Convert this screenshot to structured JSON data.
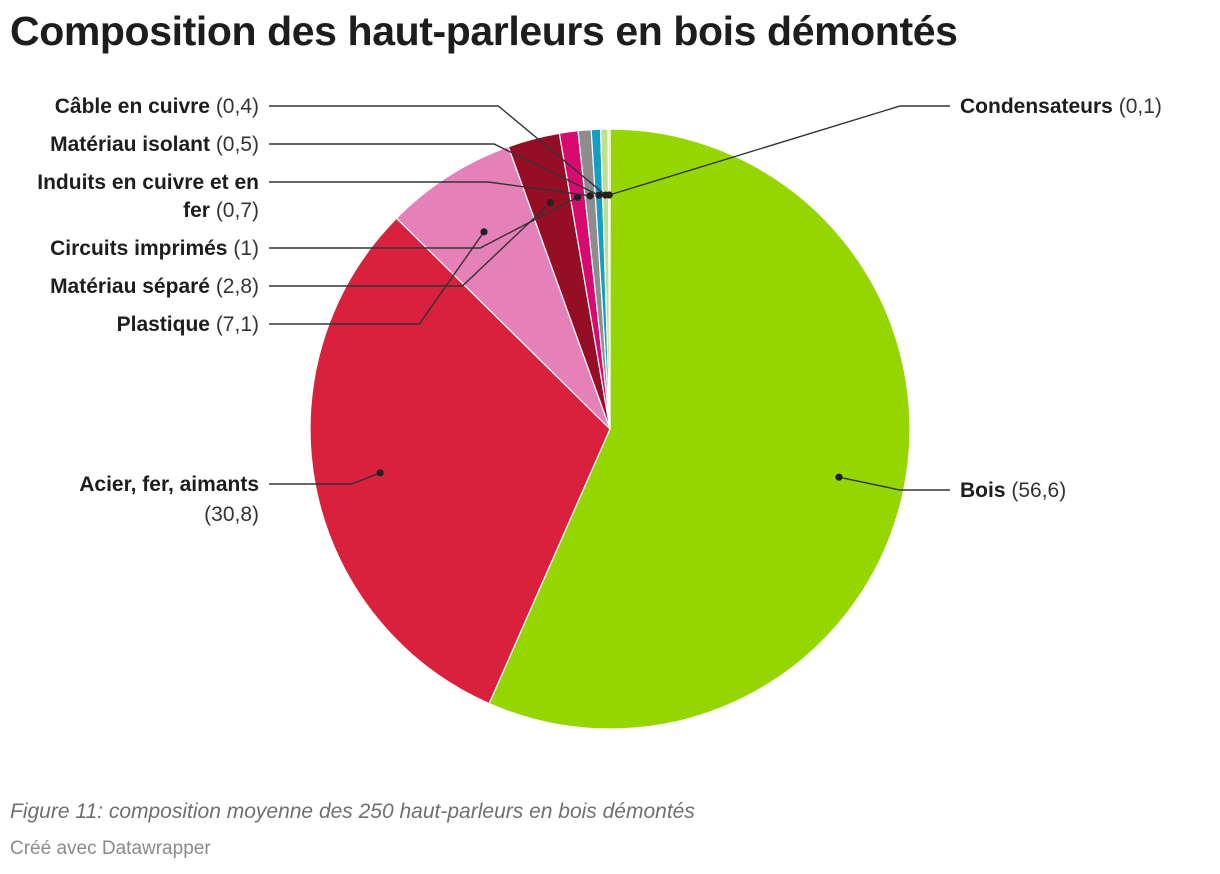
{
  "chart_data": {
    "type": "pie",
    "title": "Composition des haut-parleurs en bois démontés",
    "slices": [
      {
        "label": "Bois",
        "value": 56.6,
        "display": "56,6",
        "color": "#95d600"
      },
      {
        "label": "Acier, fer, aimants",
        "value": 30.8,
        "display": "30,8",
        "color": "#d9203c"
      },
      {
        "label": "Plastique",
        "value": 7.1,
        "display": "7,1",
        "color": "#e680b8"
      },
      {
        "label": "Matériau séparé",
        "value": 2.8,
        "display": "2,8",
        "color": "#960e26"
      },
      {
        "label": "Circuits imprimés",
        "value": 1,
        "display": "1",
        "color": "#d60a6f"
      },
      {
        "label": "Induits en cuivre et en fer",
        "value": 0.7,
        "display": "0,7",
        "color": "#8d8d8d"
      },
      {
        "label": "Matériau isolant",
        "value": 0.5,
        "display": "0,5",
        "color": "#139ec4"
      },
      {
        "label": "Câble en cuivre",
        "value": 0.4,
        "display": "0,4",
        "color": "#bde08a"
      },
      {
        "label": "Condensateurs",
        "value": 0.1,
        "display": "0,1",
        "color": "#d6e86a"
      }
    ]
  },
  "caption": "Figure 11: composition moyenne des 250 haut-parleurs en bois démontés",
  "credit": "Créé avec Datawrapper"
}
